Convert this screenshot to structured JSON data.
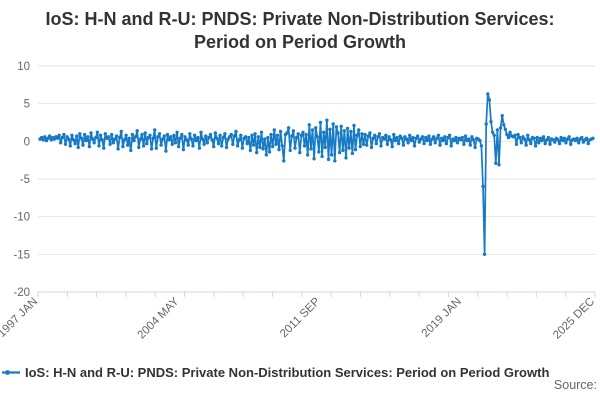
{
  "title": {
    "line1": "IoS: H-N and R-U: PNDS: Private Non-Distribution Services:",
    "line2": "Period on Period Growth"
  },
  "legend": {
    "label": "IoS: H-N and R-U: PNDS: Private Non-Distribution Services: Period on Period Growth"
  },
  "source": {
    "label": "Source:"
  },
  "colors": {
    "series": "#177ac4",
    "grid": "#e6e6e6",
    "axis": "#ccd6eb",
    "tick_label": "#666666",
    "title_text": "#333333",
    "source_text": "#666666"
  },
  "chart_data": {
    "type": "line",
    "title": "IoS: H-N and R-U: PNDS: Private Non-Distribution Services: Period on Period Growth",
    "xlabel": "",
    "ylabel": "",
    "x_start": "1997 JAN",
    "x_end": "2025 DEC",
    "frequency": "monthly",
    "ylim": [
      -20,
      10
    ],
    "y_ticks": [
      10,
      5,
      0,
      -5,
      -10,
      -15,
      -20
    ],
    "x_tick_labels": [
      {
        "label": "1997 JAN",
        "month_index": 0
      },
      {
        "label": "2004 MAY",
        "month_index": 88
      },
      {
        "label": "2011 SEP",
        "month_index": 176
      },
      {
        "label": "2019 JAN",
        "month_index": 264
      },
      {
        "label": "2025 DEC",
        "month_index": 347
      }
    ],
    "minor_x_tick_count": 20,
    "grid": "horizontal",
    "legend_position": "bottom-left",
    "markers": true,
    "series": [
      {
        "name": "IoS: H-N and R-U: PNDS: Private Non-Distribution Services: Period on Period Growth",
        "color": "#177ac4",
        "values": [
          0.3,
          0.5,
          0.2,
          0.6,
          0.1,
          0.4,
          0.7,
          0.2,
          0.5,
          0.3,
          0.6,
          0.4,
          0.8,
          -0.2,
          0.5,
          0.9,
          -0.4,
          0.6,
          0.3,
          -0.6,
          0.8,
          0.2,
          -0.3,
          0.7,
          -0.8,
          1.0,
          0.4,
          -0.5,
          0.9,
          0.1,
          0.6,
          -0.7,
          1.1,
          0.3,
          -0.2,
          0.5,
          1.2,
          -0.6,
          0.8,
          0.2,
          -0.9,
          1.0,
          0.4,
          0.6,
          -0.4,
          0.9,
          -0.2,
          0.3,
          0.7,
          -1.0,
          0.5,
          1.3,
          -0.7,
          0.2,
          0.8,
          -0.5,
          0.4,
          -1.2,
          0.9,
          0.1,
          0.6,
          1.4,
          -0.8,
          0.3,
          0.9,
          -0.6,
          1.1,
          -0.3,
          0.5,
          0.8,
          -1.0,
          0.4,
          1.5,
          -0.9,
          0.6,
          1.0,
          -0.5,
          0.3,
          0.7,
          -1.3,
          0.9,
          0.2,
          0.6,
          -0.4,
          0.8,
          -0.2,
          1.2,
          -0.7,
          0.4,
          0.9,
          -1.1,
          0.6,
          0.2,
          -0.5,
          1.0,
          0.3,
          -0.6,
          0.8,
          0.1,
          0.5,
          -0.9,
          1.2,
          0.3,
          -0.4,
          0.7,
          -0.2,
          0.5,
          0.9,
          0.2,
          -0.7,
          1.1,
          0.4,
          -0.3,
          0.8,
          -0.6,
          0.5,
          1.0,
          -0.8,
          0.3,
          0.6,
          0.9,
          -0.4,
          0.7,
          1.3,
          -0.6,
          0.2,
          0.8,
          -0.9,
          0.4,
          0.6,
          -0.3,
          0.5,
          -1.2,
          0.8,
          -0.5,
          1.0,
          -1.5,
          0.6,
          -0.8,
          1.2,
          -1.0,
          0.3,
          -1.8,
          0.5,
          -1.4,
          0.9,
          -0.7,
          1.5,
          -0.4,
          0.8,
          -1.1,
          1.3,
          -0.6,
          -2.6,
          0.9,
          1.1,
          1.8,
          -1.2,
          0.7,
          1.4,
          -0.9,
          0.5,
          1.0,
          -1.5,
          0.8,
          1.2,
          -0.6,
          0.9,
          -1.8,
          2.2,
          -1.0,
          1.5,
          -2.3,
          1.8,
          0.6,
          -1.4,
          2.5,
          -2.0,
          1.2,
          -0.8,
          2.8,
          -2.4,
          1.6,
          -1.8,
          2.3,
          -2.6,
          1.9,
          1.1,
          -1.5,
          2.0,
          -1.2,
          1.4,
          -2.2,
          1.7,
          -0.9,
          1.3,
          -1.6,
          2.1,
          -1.1,
          0.8,
          1.5,
          -0.7,
          1.0,
          -0.4,
          0.9,
          -0.5,
          0.7,
          1.1,
          -0.8,
          0.4,
          0.8,
          -0.3,
          0.6,
          1.0,
          -0.6,
          0.5,
          0.3,
          0.8,
          -0.4,
          0.6,
          0.2,
          -0.7,
          0.9,
          0.1,
          0.5,
          -0.3,
          0.7,
          0.4,
          -0.5,
          0.6,
          0.3,
          -0.2,
          0.8,
          0.1,
          0.5,
          -0.6,
          0.4,
          0.7,
          -0.1,
          0.3,
          0.6,
          -0.3,
          0.5,
          0.1,
          0.7,
          -0.4,
          0.3,
          0.6,
          -0.2,
          0.4,
          0.8,
          -0.5,
          0.4,
          0.1,
          0.6,
          -0.3,
          0.5,
          0.8,
          -0.6,
          0.3,
          0.1,
          0.5,
          -0.2,
          0.4,
          0.2,
          0.5,
          -0.4,
          0.7,
          0.1,
          0.3,
          -0.5,
          0.6,
          0.2,
          -0.8,
          0.4,
          0.3,
          0.1,
          -0.6,
          -6.0,
          -15.0,
          2.3,
          6.3,
          5.5,
          2.6,
          1.2,
          0.8,
          -2.9,
          1.5,
          -3.1,
          1.8,
          3.4,
          2.2,
          1.6,
          0.9,
          0.5,
          1.2,
          0.7,
          0.6,
          0.8,
          -0.4,
          0.9,
          0.5,
          -0.2,
          0.6,
          0.3,
          -0.5,
          0.8,
          0.2,
          -0.3,
          0.5,
          0.4,
          -0.6,
          0.5,
          -0.2,
          0.4,
          0.1,
          0.6,
          -0.3,
          0.2,
          0.5,
          -0.4,
          0.3,
          0.2,
          -0.1,
          0.4,
          0.2,
          -0.3,
          0.5,
          0.1,
          0.4,
          -0.2,
          0.3,
          0.6,
          -0.4,
          0.2,
          0.3,
          0.1,
          0.4,
          -0.2,
          0.3,
          0.5,
          -0.1,
          0.2,
          0.4,
          -0.3,
          0.2,
          0.3,
          0.4
        ]
      }
    ]
  }
}
